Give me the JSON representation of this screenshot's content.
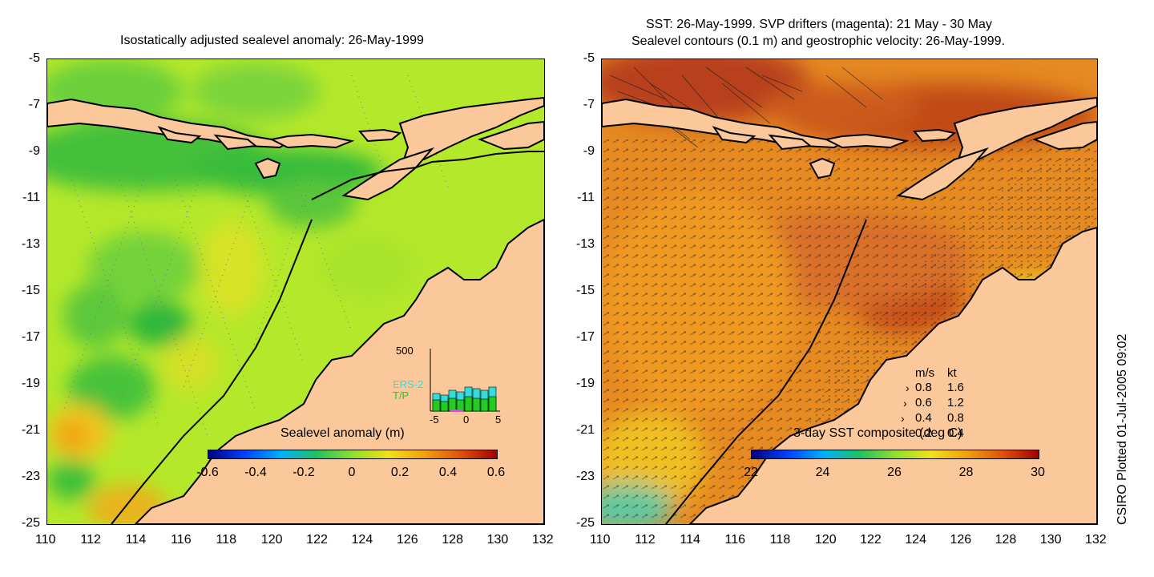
{
  "left_panel": {
    "title": "Isostatically adjusted sealevel anomaly: 26-May-1999",
    "colorbar": {
      "label": "Sealevel anomaly (m)",
      "ticks": [
        "-0.6",
        "-0.4",
        "-0.2",
        "0",
        "0.2",
        "0.4",
        "0.6"
      ]
    },
    "inset": {
      "y_tick": "500",
      "x_ticks": [
        "-5",
        "0",
        "5"
      ],
      "legend": [
        {
          "label": "ERS-2",
          "color": "#33dddd"
        },
        {
          "label": "T/P",
          "color": "#22cc22"
        }
      ]
    }
  },
  "right_panel": {
    "title_line1": "SST: 26-May-1999. SVP drifters (magenta): 21 May - 30 May",
    "title_line2": "Sealevel contours (0.1 m) and geostrophic velocity: 26-May-1999.",
    "colorbar": {
      "label": "3-day SST composite (deg C)",
      "ticks": [
        "22",
        "24",
        "26",
        "28",
        "30"
      ]
    },
    "speed_key": {
      "header_ms": "m/s",
      "header_kt": "kt",
      "rows": [
        {
          "ms": "0.8",
          "kt": "1.6"
        },
        {
          "ms": "0.6",
          "kt": "1.2"
        },
        {
          "ms": "0.4",
          "kt": "0.8"
        },
        {
          "ms": "0.2",
          "kt": "0.4"
        }
      ]
    }
  },
  "axes": {
    "x_ticks": [
      "110",
      "112",
      "114",
      "116",
      "118",
      "120",
      "122",
      "124",
      "126",
      "128",
      "130",
      "132"
    ],
    "y_ticks": [
      "-5",
      "-7",
      "-9",
      "-11",
      "-13",
      "-15",
      "-17",
      "-19",
      "-21",
      "-23",
      "-25"
    ]
  },
  "credit": "CSIRO Plotted 01-Jul-2005 09:02",
  "colors": {
    "land": "#fac89a",
    "sea_left": "#b8ec2a",
    "sea_right": "#e48a22"
  }
}
